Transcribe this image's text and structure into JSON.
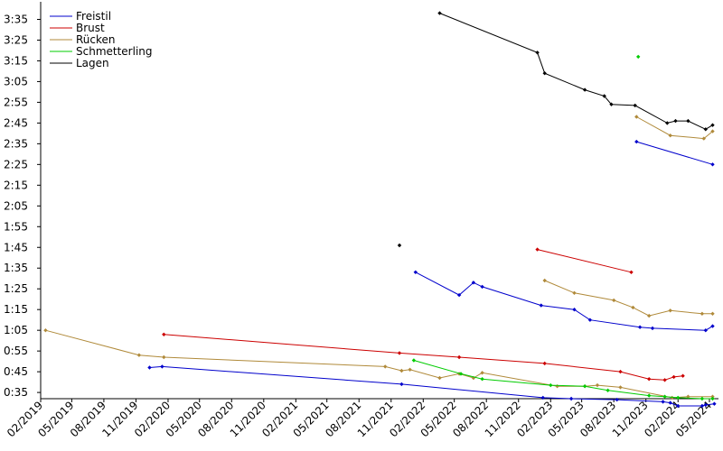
{
  "chart_data": {
    "type": "line",
    "title": "",
    "xlabel": "",
    "ylabel": "",
    "grid": false,
    "legend_position": "top-left",
    "x_ticks": [
      "02/2019",
      "05/2019",
      "08/2019",
      "11/2019",
      "02/2020",
      "05/2020",
      "08/2020",
      "11/2020",
      "02/2021",
      "05/2021",
      "08/2021",
      "11/2021",
      "02/2022",
      "05/2022",
      "08/2022",
      "11/2022",
      "02/2023",
      "05/2023",
      "08/2023",
      "11/2023",
      "02/2024",
      "05/2024"
    ],
    "y_ticks": [
      "0:35",
      "0:45",
      "0:55",
      "1:05",
      "1:15",
      "1:25",
      "1:35",
      "1:45",
      "1:55",
      "2:05",
      "2:15",
      "2:25",
      "2:35",
      "2:45",
      "2:55",
      "3:05",
      "3:15",
      "3:25",
      "3:35"
    ],
    "series": [
      {
        "name": "Freistil",
        "color": "#0000cc",
        "lines": [
          [
            [
              "2019-12-10",
              "0:47"
            ],
            [
              "2020-01-15",
              "0:47.5"
            ],
            [
              "2021-12-01",
              "0:39"
            ],
            [
              "2023-01-10",
              "0:32.5"
            ],
            [
              "2023-04-01",
              "0:32"
            ],
            [
              "2023-08-10",
              "0:31.5"
            ],
            [
              "2023-12-20",
              "0:30.5"
            ],
            [
              "2024-01-10",
              "0:30"
            ],
            [
              "2024-02-01",
              "0:28.5"
            ],
            [
              "2024-04-10",
              "0:28.5"
            ],
            [
              "2024-04-20",
              "0:29"
            ],
            [
              "2024-05-15",
              "0:29.5"
            ]
          ],
          [
            [
              "2022-01-10",
              "1:33"
            ],
            [
              "2022-05-15",
              "1:22"
            ],
            [
              "2022-06-25",
              "1:28"
            ],
            [
              "2022-07-20",
              "1:26"
            ],
            [
              "2023-01-05",
              "1:17"
            ],
            [
              "2023-04-10",
              "1:15"
            ],
            [
              "2023-05-25",
              "1:10"
            ],
            [
              "2023-10-15",
              "1:06.5"
            ],
            [
              "2023-11-20",
              "1:06"
            ],
            [
              "2024-04-20",
              "1:05"
            ],
            [
              "2024-05-10",
              "1:07"
            ]
          ],
          [
            [
              "2023-10-05",
              "2:36"
            ],
            [
              "2024-05-10",
              "2:25"
            ]
          ]
        ]
      },
      {
        "name": "Brust",
        "color": "#cc0000",
        "lines": [
          [
            [
              "2020-01-20",
              "1:03"
            ],
            [
              "2021-11-25",
              "0:54"
            ],
            [
              "2022-05-15",
              "0:52"
            ],
            [
              "2023-01-15",
              "0:49"
            ],
            [
              "2023-08-20",
              "0:45"
            ],
            [
              "2023-11-10",
              "0:41.5"
            ],
            [
              "2023-12-25",
              "0:41"
            ],
            [
              "2024-01-20",
              "0:42.5"
            ],
            [
              "2024-02-15",
              "0:43"
            ]
          ],
          [
            [
              "2022-12-25",
              "1:44"
            ],
            [
              "2023-09-20",
              "1:33"
            ]
          ]
        ]
      },
      {
        "name": "Rücken",
        "color": "#b08a3a",
        "lines": [
          [
            [
              "2019-02-15",
              "1:05"
            ],
            [
              "2019-11-10",
              "0:53"
            ],
            [
              "2020-01-20",
              "0:52"
            ],
            [
              "2021-10-15",
              "0:47.5"
            ],
            [
              "2021-12-01",
              "0:45.5"
            ],
            [
              "2021-12-25",
              "0:46"
            ],
            [
              "2022-03-20",
              "0:42"
            ],
            [
              "2022-05-15",
              "0:44"
            ],
            [
              "2022-06-25",
              "0:42"
            ],
            [
              "2022-07-20",
              "0:44.5"
            ],
            [
              "2023-02-20",
              "0:38"
            ],
            [
              "2023-05-10",
              "0:38"
            ],
            [
              "2023-06-15",
              "0:38.5"
            ],
            [
              "2023-08-20",
              "0:37.5"
            ],
            [
              "2024-01-15",
              "0:32.5"
            ],
            [
              "2024-03-01",
              "0:33"
            ],
            [
              "2024-05-10",
              "0:33"
            ]
          ],
          [
            [
              "2023-01-15",
              "1:29"
            ],
            [
              "2023-04-10",
              "1:23"
            ],
            [
              "2023-08-01",
              "1:19.5"
            ],
            [
              "2023-09-25",
              "1:16"
            ],
            [
              "2023-11-10",
              "1:12"
            ],
            [
              "2024-01-10",
              "1:14.5"
            ],
            [
              "2024-04-10",
              "1:13"
            ],
            [
              "2024-05-10",
              "1:13"
            ]
          ],
          [
            [
              "2023-10-05",
              "2:48"
            ],
            [
              "2024-01-10",
              "2:39"
            ],
            [
              "2024-04-15",
              "2:37.5"
            ],
            [
              "2024-05-10",
              "2:41"
            ]
          ]
        ]
      },
      {
        "name": "Schmetterling",
        "color": "#00cc00",
        "lines": [
          [
            [
              "2022-01-05",
              "0:50.5"
            ],
            [
              "2022-05-20",
              "0:44"
            ],
            [
              "2022-07-20",
              "0:41.5"
            ],
            [
              "2023-02-01",
              "0:38.5"
            ],
            [
              "2023-05-10",
              "0:38"
            ],
            [
              "2023-07-15",
              "0:36"
            ],
            [
              "2023-11-10",
              "0:33.5"
            ],
            [
              "2023-12-25",
              "0:33"
            ],
            [
              "2024-02-01",
              "0:32.5"
            ],
            [
              "2024-04-10",
              "0:32"
            ],
            [
              "2024-05-10",
              "0:32"
            ]
          ],
          [
            [
              "2023-10-10",
              "3:17"
            ]
          ]
        ]
      },
      {
        "name": "Lagen",
        "color": "#000000",
        "lines": [
          [
            [
              "2022-03-20",
              "3:38"
            ],
            [
              "2022-12-25",
              "3:19"
            ],
            [
              "2023-01-15",
              "3:09"
            ],
            [
              "2023-05-10",
              "3:01"
            ],
            [
              "2023-07-05",
              "2:58"
            ],
            [
              "2023-07-25",
              "2:54"
            ],
            [
              "2023-10-01",
              "2:53.5"
            ],
            [
              "2024-01-01",
              "2:45"
            ],
            [
              "2024-01-25",
              "2:46"
            ],
            [
              "2024-03-01",
              "2:46"
            ],
            [
              "2024-04-20",
              "2:42"
            ],
            [
              "2024-05-10",
              "2:44"
            ]
          ],
          [
            [
              "2021-11-25",
              "1:46"
            ]
          ]
        ]
      }
    ]
  }
}
